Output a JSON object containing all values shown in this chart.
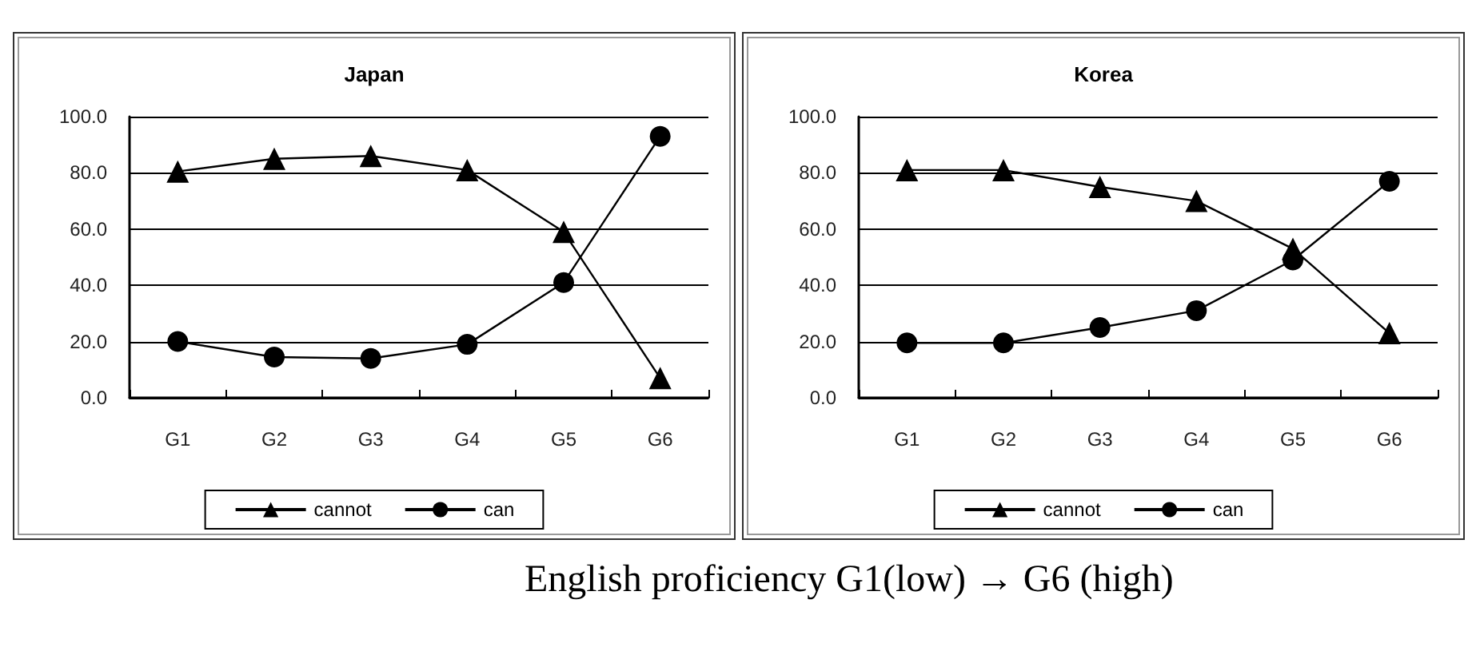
{
  "chart_data": [
    {
      "type": "line",
      "title": "Japan",
      "categories": [
        "G1",
        "G2",
        "G3",
        "G4",
        "G5",
        "G6"
      ],
      "ylim": [
        0,
        100
      ],
      "yticks": [
        {
          "value": 0,
          "label": "0.0"
        },
        {
          "value": 20,
          "label": "20.0"
        },
        {
          "value": 40,
          "label": "40.0"
        },
        {
          "value": 60,
          "label": "60.0"
        },
        {
          "value": 80,
          "label": "80.0"
        },
        {
          "value": 100,
          "label": "100.0"
        }
      ],
      "grid": "y",
      "legend": "bottom",
      "series": [
        {
          "name": "cannot",
          "color": "#000000",
          "marker": "triangle",
          "values": [
            80.5,
            85,
            86,
            81,
            59,
            7
          ]
        },
        {
          "name": "can",
          "color": "#000000",
          "marker": "circle",
          "values": [
            20,
            14.5,
            14,
            19,
            41,
            93
          ]
        }
      ]
    },
    {
      "type": "line",
      "title": "Korea",
      "categories": [
        "G1",
        "G2",
        "G3",
        "G4",
        "G5",
        "G6"
      ],
      "ylim": [
        0,
        100
      ],
      "yticks": [
        {
          "value": 0,
          "label": "0.0"
        },
        {
          "value": 20,
          "label": "20.0"
        },
        {
          "value": 40,
          "label": "40.0"
        },
        {
          "value": 60,
          "label": "60.0"
        },
        {
          "value": 80,
          "label": "80.0"
        },
        {
          "value": 100,
          "label": "100.0"
        }
      ],
      "grid": "y",
      "legend": "bottom",
      "annotations": [
        "English proficiency G1(low) → G6 (high)"
      ],
      "series": [
        {
          "name": "cannot",
          "color": "#000000",
          "marker": "triangle",
          "values": [
            81,
            81,
            75,
            70,
            53,
            23
          ]
        },
        {
          "name": "can",
          "color": "#000000",
          "marker": "circle",
          "values": [
            19.5,
            19.5,
            25,
            31,
            49,
            77
          ]
        }
      ]
    }
  ]
}
